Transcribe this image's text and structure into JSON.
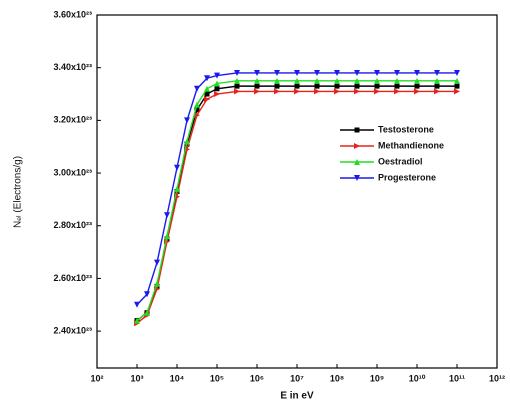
{
  "chart_data": {
    "type": "line",
    "xlabel": "E in eV",
    "ylabel": "Nₑₗ (Electrons/g)",
    "xscale": "log",
    "xlim": [
      100,
      1000000000000.0
    ],
    "xticks": [
      {
        "value": 100,
        "label": "10²"
      },
      {
        "value": 1000,
        "label": "10³"
      },
      {
        "value": 10000.0,
        "label": "10⁴"
      },
      {
        "value": 100000.0,
        "label": "10⁵"
      },
      {
        "value": 1000000.0,
        "label": "10⁶"
      },
      {
        "value": 10000000.0,
        "label": "10⁷"
      },
      {
        "value": 100000000.0,
        "label": "10⁸"
      },
      {
        "value": 1000000000.0,
        "label": "10⁹"
      },
      {
        "value": 10000000000.0,
        "label": "10¹⁰"
      },
      {
        "value": 100000000000.0,
        "label": "10¹¹"
      },
      {
        "value": 1000000000000.0,
        "label": "10¹²"
      }
    ],
    "ylim": [
      2.26e+23,
      3.6e+23
    ],
    "yticks": [
      {
        "value": 2.4e+23,
        "label": "2.40x10²³"
      },
      {
        "value": 2.6e+23,
        "label": "2.60x10²³"
      },
      {
        "value": 2.8e+23,
        "label": "2.80x10²³"
      },
      {
        "value": 3e+23,
        "label": "3.00x10²³"
      },
      {
        "value": 3.2e+23,
        "label": "3.20x10²³"
      },
      {
        "value": 3.4e+23,
        "label": "3.40x10²³"
      },
      {
        "value": 3.6e+23,
        "label": "3.60x10²³"
      }
    ],
    "grid": false,
    "legend": "right",
    "x": [
      1000,
      1778,
      3162,
      5623,
      10000,
      17780,
      31620,
      56230,
      100000,
      316200,
      1000000.0,
      3162000.0,
      10000000.0,
      31620000.0,
      100000000.0,
      316200000.0,
      1000000000.0,
      3162000000.0,
      10000000000.0,
      31620000000.0,
      100000000000.0
    ],
    "series": [
      {
        "name": "Testosterone",
        "color": "#000000",
        "marker": "square",
        "values": [
          2.44e+23,
          2.47e+23,
          2.57e+23,
          2.75e+23,
          2.93e+23,
          3.11e+23,
          3.24e+23,
          3.3e+23,
          3.32e+23,
          3.33e+23,
          3.33e+23,
          3.33e+23,
          3.33e+23,
          3.33e+23,
          3.33e+23,
          3.33e+23,
          3.33e+23,
          3.33e+23,
          3.33e+23,
          3.33e+23,
          3.33e+23
        ]
      },
      {
        "name": "Methandienone",
        "color": "#e8231b",
        "marker": "triangle-right",
        "values": [
          2.43e+23,
          2.46e+23,
          2.56e+23,
          2.74e+23,
          2.91e+23,
          3.09e+23,
          3.22e+23,
          3.28e+23,
          3.3e+23,
          3.31e+23,
          3.31e+23,
          3.31e+23,
          3.31e+23,
          3.31e+23,
          3.31e+23,
          3.31e+23,
          3.31e+23,
          3.31e+23,
          3.31e+23,
          3.31e+23,
          3.31e+23
        ]
      },
      {
        "name": "Oestradiol",
        "color": "#22dd22",
        "marker": "triangle-up",
        "values": [
          2.44e+23,
          2.47e+23,
          2.58e+23,
          2.76e+23,
          2.94e+23,
          3.12e+23,
          3.26e+23,
          3.32e+23,
          3.34e+23,
          3.35e+23,
          3.35e+23,
          3.35e+23,
          3.35e+23,
          3.35e+23,
          3.35e+23,
          3.35e+23,
          3.35e+23,
          3.35e+23,
          3.35e+23,
          3.35e+23,
          3.35e+23
        ]
      },
      {
        "name": "Progesterone",
        "color": "#1a1aee",
        "marker": "triangle-down",
        "values": [
          2.5e+23,
          2.54e+23,
          2.66e+23,
          2.84e+23,
          3.02e+23,
          3.2e+23,
          3.32e+23,
          3.36e+23,
          3.37e+23,
          3.38e+23,
          3.38e+23,
          3.38e+23,
          3.38e+23,
          3.38e+23,
          3.38e+23,
          3.38e+23,
          3.38e+23,
          3.38e+23,
          3.38e+23,
          3.38e+23,
          3.38e+23
        ]
      }
    ]
  }
}
